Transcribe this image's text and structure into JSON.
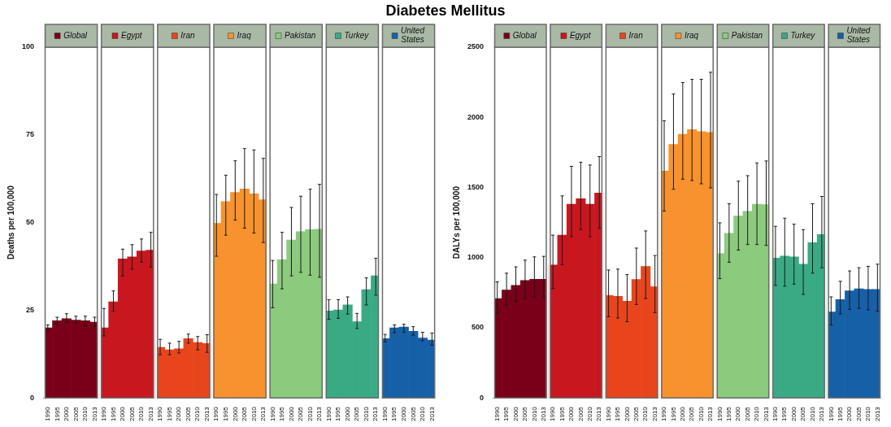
{
  "chart_data": [
    {
      "type": "bar",
      "title": "Diabetes Mellitus",
      "legend": "top",
      "ylabel": "Deaths per 100,000",
      "ylim": [
        0,
        100
      ],
      "yticks": [
        0,
        25,
        50,
        75,
        100
      ],
      "categories": [
        "1990",
        "1995",
        "2000",
        "2005",
        "2010",
        "2013",
        "1990",
        "1995",
        "2000",
        "2005",
        "2010",
        "2013",
        "1990",
        "1995",
        "2000",
        "2005",
        "2010",
        "2013",
        "1990",
        "1995",
        "2000",
        "2005",
        "2010",
        "2013",
        "1990",
        "1995",
        "2000",
        "2005",
        "2010",
        "2013",
        "1990",
        "1995",
        "2000",
        "2005",
        "2010",
        "2013",
        "1990",
        "1995",
        "2000",
        "2005",
        "2010",
        "2013"
      ],
      "series": [
        {
          "name": "Global",
          "color": "#7a0019",
          "values": [
            20.0,
            22.0,
            22.6,
            22.2,
            22.0,
            21.6,
            null,
            null,
            null,
            null,
            null,
            null,
            null,
            null,
            null,
            null,
            null,
            null,
            null,
            null,
            null,
            null,
            null,
            null,
            null,
            null,
            null,
            null,
            null,
            null,
            null,
            null,
            null,
            null,
            null,
            null,
            null,
            null,
            null,
            null,
            null,
            null
          ],
          "errors": [
            [
              19.3,
              20.8
            ],
            [
              21.0,
              23.0
            ],
            [
              21.5,
              24.0
            ],
            [
              21.3,
              23.3
            ],
            [
              20.5,
              23.3
            ],
            [
              20.3,
              23.0
            ],
            null,
            null,
            null,
            null,
            null,
            null,
            null,
            null,
            null,
            null,
            null,
            null,
            null,
            null,
            null,
            null,
            null,
            null,
            null,
            null,
            null,
            null,
            null,
            null,
            null,
            null,
            null,
            null,
            null,
            null,
            null,
            null,
            null,
            null,
            null,
            null
          ]
        },
        {
          "name": "Egypt",
          "color": "#c8171f",
          "values": [
            null,
            null,
            null,
            null,
            null,
            null,
            20.0,
            27.4,
            39.6,
            40.2,
            41.9,
            42.1,
            null,
            null,
            null,
            null,
            null,
            null,
            null,
            null,
            null,
            null,
            null,
            null,
            null,
            null,
            null,
            null,
            null,
            null,
            null,
            null,
            null,
            null,
            null,
            null,
            null,
            null,
            null,
            null,
            null,
            null
          ],
          "errors": [
            null,
            null,
            null,
            null,
            null,
            null,
            [
              17.7,
              25.5
            ],
            [
              24.7,
              30.5
            ],
            [
              34.8,
              42.4
            ],
            [
              36.7,
              43.7
            ],
            [
              38.7,
              45.3
            ],
            [
              37.3,
              47.2
            ],
            null,
            null,
            null,
            null,
            null,
            null,
            null,
            null,
            null,
            null,
            null,
            null,
            null,
            null,
            null,
            null,
            null,
            null,
            null,
            null,
            null,
            null,
            null,
            null,
            null,
            null,
            null,
            null,
            null,
            null
          ]
        },
        {
          "name": "Iran",
          "color": "#e8451d",
          "values": [
            null,
            null,
            null,
            null,
            null,
            null,
            null,
            null,
            null,
            null,
            null,
            null,
            14.4,
            13.7,
            14.0,
            16.9,
            15.8,
            15.5,
            null,
            null,
            null,
            null,
            null,
            null,
            null,
            null,
            null,
            null,
            null,
            null,
            null,
            null,
            null,
            null,
            null,
            null,
            null,
            null,
            null,
            null,
            null,
            null
          ],
          "errors": [
            null,
            null,
            null,
            null,
            null,
            null,
            null,
            null,
            null,
            null,
            null,
            null,
            [
              12.3,
              16.7
            ],
            [
              12.3,
              15.6
            ],
            [
              12.8,
              16.1
            ],
            [
              15.6,
              18.2
            ],
            [
              13.7,
              17.5
            ],
            [
              13.0,
              18.0
            ],
            null,
            null,
            null,
            null,
            null,
            null,
            null,
            null,
            null,
            null,
            null,
            null,
            null,
            null,
            null,
            null,
            null,
            null,
            null,
            null,
            null,
            null,
            null,
            null
          ]
        },
        {
          "name": "Iraq",
          "color": "#f7922e",
          "values": [
            null,
            null,
            null,
            null,
            null,
            null,
            null,
            null,
            null,
            null,
            null,
            null,
            null,
            null,
            null,
            null,
            null,
            null,
            49.8,
            56.0,
            58.6,
            59.6,
            58.2,
            56.5,
            null,
            null,
            null,
            null,
            null,
            null,
            null,
            null,
            null,
            null,
            null,
            null,
            null,
            null,
            null,
            null,
            null,
            null
          ],
          "errors": [
            null,
            null,
            null,
            null,
            null,
            null,
            null,
            null,
            null,
            null,
            null,
            null,
            null,
            null,
            null,
            null,
            null,
            null,
            [
              40.4,
              58.0
            ],
            [
              46.4,
              63.5
            ],
            [
              50.7,
              67.6
            ],
            [
              48.4,
              71.1
            ],
            [
              47.0,
              70.7
            ],
            [
              44.3,
              68.3
            ],
            null,
            null,
            null,
            null,
            null,
            null,
            null,
            null,
            null,
            null,
            null,
            null,
            null,
            null,
            null,
            null,
            null,
            null
          ]
        },
        {
          "name": "Pakistan",
          "color": "#8cca7e",
          "values": [
            null,
            null,
            null,
            null,
            null,
            null,
            null,
            null,
            null,
            null,
            null,
            null,
            null,
            null,
            null,
            null,
            null,
            null,
            null,
            null,
            null,
            null,
            null,
            null,
            32.5,
            39.4,
            45.0,
            47.4,
            48.0,
            48.1,
            null,
            null,
            null,
            null,
            null,
            null,
            null,
            null,
            null,
            null,
            null,
            null
          ],
          "errors": [
            null,
            null,
            null,
            null,
            null,
            null,
            null,
            null,
            null,
            null,
            null,
            null,
            null,
            null,
            null,
            null,
            null,
            null,
            null,
            null,
            null,
            null,
            null,
            null,
            [
              25.7,
              39.2
            ],
            [
              31.1,
              47.2
            ],
            [
              34.8,
              54.3
            ],
            [
              35.8,
              57.5
            ],
            [
              35.0,
              59.5
            ],
            [
              34.4,
              60.9
            ],
            null,
            null,
            null,
            null,
            null,
            null,
            null,
            null,
            null,
            null,
            null,
            null
          ]
        },
        {
          "name": "Turkey",
          "color": "#3aaa85",
          "values": [
            null,
            null,
            null,
            null,
            null,
            null,
            null,
            null,
            null,
            null,
            null,
            null,
            null,
            null,
            null,
            null,
            null,
            null,
            null,
            null,
            null,
            null,
            null,
            null,
            null,
            null,
            null,
            null,
            null,
            null,
            24.8,
            25.1,
            26.5,
            21.7,
            30.9,
            34.8,
            null,
            null,
            null,
            null,
            null,
            null
          ],
          "errors": [
            null,
            null,
            null,
            null,
            null,
            null,
            null,
            null,
            null,
            null,
            null,
            null,
            null,
            null,
            null,
            null,
            null,
            null,
            null,
            null,
            null,
            null,
            null,
            null,
            null,
            null,
            null,
            null,
            null,
            null,
            [
              22.4,
              28.0
            ],
            [
              22.7,
              28.0
            ],
            [
              23.9,
              28.8
            ],
            [
              19.8,
              24.1
            ],
            [
              26.5,
              34.2
            ],
            [
              29.3,
              39.8
            ],
            null,
            null,
            null,
            null,
            null,
            null
          ]
        },
        {
          "name": "United States",
          "color": "#1660a8",
          "values": [
            null,
            null,
            null,
            null,
            null,
            null,
            null,
            null,
            null,
            null,
            null,
            null,
            null,
            null,
            null,
            null,
            null,
            null,
            null,
            null,
            null,
            null,
            null,
            null,
            null,
            null,
            null,
            null,
            null,
            null,
            null,
            null,
            null,
            null,
            null,
            null,
            16.9,
            20.0,
            20.2,
            19.0,
            17.1,
            16.5
          ],
          "errors": [
            null,
            null,
            null,
            null,
            null,
            null,
            null,
            null,
            null,
            null,
            null,
            null,
            null,
            null,
            null,
            null,
            null,
            null,
            null,
            null,
            null,
            null,
            null,
            null,
            null,
            null,
            null,
            null,
            null,
            null,
            null,
            null,
            null,
            null,
            null,
            null,
            [
              16.0,
              18.1
            ],
            [
              18.6,
              20.8
            ],
            [
              18.7,
              21.0
            ],
            [
              17.9,
              20.3
            ],
            [
              16.3,
              18.7
            ],
            [
              15.0,
              18.5
            ]
          ]
        }
      ]
    },
    {
      "type": "bar",
      "legend": "top",
      "ylabel": "DALYs per 100,000",
      "ylim": [
        0,
        2500
      ],
      "yticks": [
        0,
        500,
        1000,
        1500,
        2000,
        2500
      ],
      "categories": [
        "1990",
        "1995",
        "2000",
        "2005",
        "2010",
        "2013",
        "1990",
        "1995",
        "2000",
        "2005",
        "2010",
        "2013",
        "1990",
        "1995",
        "2000",
        "2005",
        "2010",
        "2013",
        "1990",
        "1995",
        "2000",
        "2005",
        "2010",
        "2013",
        "1990",
        "1995",
        "2000",
        "2005",
        "2010",
        "2013",
        "1990",
        "1995",
        "2000",
        "2005",
        "2010",
        "2013",
        "1990",
        "1995",
        "2000",
        "2005",
        "2010",
        "2013"
      ],
      "series": [
        {
          "name": "Global",
          "color": "#7a0019",
          "values": [
            708,
            769,
            802,
            837,
            846,
            846,
            null,
            null,
            null,
            null,
            null,
            null,
            null,
            null,
            null,
            null,
            null,
            null,
            null,
            null,
            null,
            null,
            null,
            null,
            null,
            null,
            null,
            null,
            null,
            null,
            null,
            null,
            null,
            null,
            null,
            null,
            null,
            null,
            null,
            null,
            null,
            null
          ],
          "errors": [
            [
              604,
              827
            ],
            [
              662,
              889
            ],
            [
              689,
              934
            ],
            [
              705,
              982
            ],
            [
              720,
              1005
            ],
            [
              714,
              1009
            ],
            null,
            null,
            null,
            null,
            null,
            null,
            null,
            null,
            null,
            null,
            null,
            null,
            null,
            null,
            null,
            null,
            null,
            null,
            null,
            null,
            null,
            null,
            null,
            null,
            null,
            null,
            null,
            null,
            null,
            null,
            null,
            null,
            null,
            null,
            null,
            null
          ]
        },
        {
          "name": "Egypt",
          "color": "#c8171f",
          "values": [
            null,
            null,
            null,
            null,
            null,
            null,
            947,
            1160,
            1380,
            1420,
            1380,
            1460,
            null,
            null,
            null,
            null,
            null,
            null,
            null,
            null,
            null,
            null,
            null,
            null,
            null,
            null,
            null,
            null,
            null,
            null,
            null,
            null,
            null,
            null,
            null,
            null,
            null,
            null,
            null,
            null,
            null,
            null
          ],
          "errors": [
            null,
            null,
            null,
            null,
            null,
            null,
            [
              780,
              1160
            ],
            [
              950,
              1440
            ],
            [
              1150,
              1650
            ],
            [
              1200,
              1680
            ],
            [
              1150,
              1660
            ],
            [
              1210,
              1720
            ],
            null,
            null,
            null,
            null,
            null,
            null,
            null,
            null,
            null,
            null,
            null,
            null,
            null,
            null,
            null,
            null,
            null,
            null,
            null,
            null,
            null,
            null,
            null,
            null,
            null,
            null,
            null,
            null,
            null,
            null
          ]
        },
        {
          "name": "Iran",
          "color": "#e8451d",
          "values": [
            null,
            null,
            null,
            null,
            null,
            null,
            null,
            null,
            null,
            null,
            null,
            null,
            730,
            724,
            689,
            844,
            937,
            792,
            null,
            null,
            null,
            null,
            null,
            null,
            null,
            null,
            null,
            null,
            null,
            null,
            null,
            null,
            null,
            null,
            null,
            null,
            null,
            null,
            null,
            null,
            null,
            null
          ],
          "errors": [
            null,
            null,
            null,
            null,
            null,
            null,
            null,
            null,
            null,
            null,
            null,
            null,
            [
              578,
              912
            ],
            [
              569,
              918
            ],
            [
              543,
              879
            ],
            [
              666,
              1068
            ],
            [
              708,
              1190
            ],
            [
              608,
              1015
            ],
            null,
            null,
            null,
            null,
            null,
            null,
            null,
            null,
            null,
            null,
            null,
            null,
            null,
            null,
            null,
            null,
            null,
            null,
            null,
            null,
            null,
            null,
            null,
            null
          ]
        },
        {
          "name": "Iraq",
          "color": "#f7922e",
          "values": [
            null,
            null,
            null,
            null,
            null,
            null,
            null,
            null,
            null,
            null,
            null,
            null,
            null,
            null,
            null,
            null,
            null,
            null,
            1617,
            1807,
            1879,
            1912,
            1898,
            1892,
            null,
            null,
            null,
            null,
            null,
            null,
            null,
            null,
            null,
            null,
            null,
            null,
            null,
            null,
            null,
            null,
            null,
            null
          ],
          "errors": [
            null,
            null,
            null,
            null,
            null,
            null,
            null,
            null,
            null,
            null,
            null,
            null,
            null,
            null,
            null,
            null,
            null,
            null,
            [
              1332,
              1976
            ],
            [
              1487,
              2166
            ],
            [
              1559,
              2248
            ],
            [
              1549,
              2271
            ],
            [
              1526,
              2271
            ],
            [
              1497,
              2321
            ],
            null,
            null,
            null,
            null,
            null,
            null,
            null,
            null,
            null,
            null,
            null,
            null,
            null,
            null,
            null,
            null,
            null,
            null
          ]
        },
        {
          "name": "Pakistan",
          "color": "#8cca7e",
          "values": [
            null,
            null,
            null,
            null,
            null,
            null,
            null,
            null,
            null,
            null,
            null,
            null,
            null,
            null,
            null,
            null,
            null,
            null,
            null,
            null,
            null,
            null,
            null,
            null,
            1029,
            1174,
            1297,
            1330,
            1380,
            1378,
            null,
            null,
            null,
            null,
            null,
            null,
            null,
            null,
            null,
            null,
            null,
            null
          ],
          "errors": [
            null,
            null,
            null,
            null,
            null,
            null,
            null,
            null,
            null,
            null,
            null,
            null,
            null,
            null,
            null,
            null,
            null,
            null,
            null,
            null,
            null,
            null,
            null,
            null,
            [
              850,
              1248
            ],
            [
              967,
              1384
            ],
            [
              1054,
              1545
            ],
            [
              1093,
              1584
            ],
            [
              1093,
              1675
            ],
            [
              1087,
              1689
            ],
            null,
            null,
            null,
            null,
            null,
            null,
            null,
            null,
            null,
            null,
            null,
            null
          ]
        },
        {
          "name": "Turkey",
          "color": "#3aaa85",
          "values": [
            null,
            null,
            null,
            null,
            null,
            null,
            null,
            null,
            null,
            null,
            null,
            null,
            null,
            null,
            null,
            null,
            null,
            null,
            null,
            null,
            null,
            null,
            null,
            null,
            null,
            null,
            null,
            null,
            null,
            null,
            996,
            1011,
            1005,
            953,
            1106,
            1165,
            null,
            null,
            null,
            null,
            null,
            null
          ],
          "errors": [
            null,
            null,
            null,
            null,
            null,
            null,
            null,
            null,
            null,
            null,
            null,
            null,
            null,
            null,
            null,
            null,
            null,
            null,
            null,
            null,
            null,
            null,
            null,
            null,
            null,
            null,
            null,
            null,
            null,
            null,
            [
              802,
              1223
            ],
            [
              796,
              1281
            ],
            [
              811,
              1238
            ],
            [
              738,
              1199
            ],
            [
              889,
              1384
            ],
            [
              928,
              1436
            ],
            null,
            null,
            null,
            null,
            null,
            null
          ]
        },
        {
          "name": "United States",
          "color": "#1660a8",
          "values": [
            null,
            null,
            null,
            null,
            null,
            null,
            null,
            null,
            null,
            null,
            null,
            null,
            null,
            null,
            null,
            null,
            null,
            null,
            null,
            null,
            null,
            null,
            null,
            null,
            null,
            null,
            null,
            null,
            null,
            null,
            null,
            null,
            null,
            null,
            null,
            null,
            613,
            701,
            763,
            778,
            773,
            773
          ],
          "errors": [
            null,
            null,
            null,
            null,
            null,
            null,
            null,
            null,
            null,
            null,
            null,
            null,
            null,
            null,
            null,
            null,
            null,
            null,
            null,
            null,
            null,
            null,
            null,
            null,
            null,
            null,
            null,
            null,
            null,
            null,
            null,
            null,
            null,
            null,
            null,
            null,
            [
              520,
              720
            ],
            [
              598,
              831
            ],
            [
              631,
              905
            ],
            [
              637,
              928
            ],
            [
              627,
              938
            ],
            [
              617,
              953
            ]
          ]
        }
      ]
    }
  ]
}
